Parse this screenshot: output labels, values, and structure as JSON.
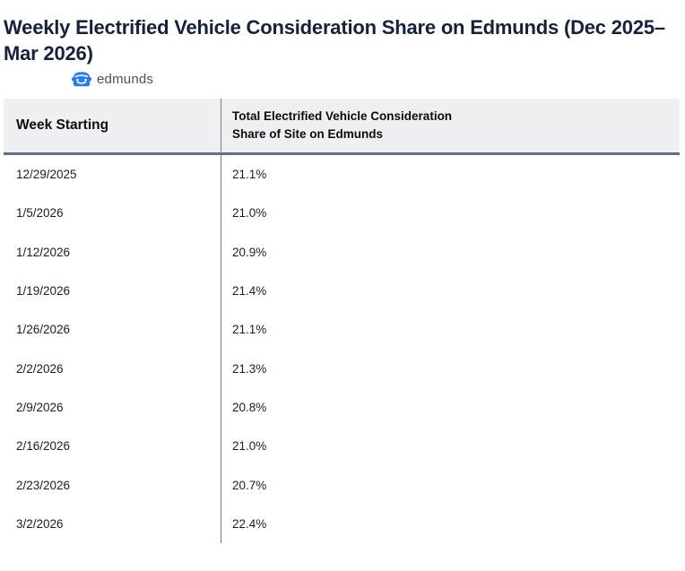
{
  "page": {
    "title": "Weekly Electrified Vehicle Consideration Share on Edmunds (Dec 2025–Mar 2026)"
  },
  "logo": {
    "brand_text": "edmunds",
    "icon": "edmunds-car-icon",
    "icon_color": "#2b7de9",
    "text_color": "#4d5256"
  },
  "table": {
    "header": {
      "col_week": "Week Starting",
      "col_share_line1": "Total Electrified Vehicle Consideration",
      "col_share_line2": "Share of Site on Edmunds"
    },
    "rows": [
      {
        "week": "12/29/2025",
        "share": "21.1%"
      },
      {
        "week": "1/5/2026",
        "share": "21.0%"
      },
      {
        "week": "1/12/2026",
        "share": "20.9%"
      },
      {
        "week": "1/19/2026",
        "share": "21.4%"
      },
      {
        "week": "1/26/2026",
        "share": "21.1%"
      },
      {
        "week": "2/2/2026",
        "share": "21.3%"
      },
      {
        "week": "2/9/2026",
        "share": "20.8%"
      },
      {
        "week": "2/16/2026",
        "share": "21.0%"
      },
      {
        "week": "2/23/2026",
        "share": "20.7%"
      },
      {
        "week": "3/2/2026",
        "share": "22.4%"
      }
    ]
  },
  "colors": {
    "title_text": "#15223b",
    "header_bg": "#eff0f2",
    "header_border": "#5f6e8b",
    "column_divider": "#6f7a90",
    "body_text": "#1d1d1f",
    "logo_blue": "#2b7de9"
  },
  "chart_data": {
    "type": "table",
    "title": "Weekly Electrified Vehicle Consideration Share on Edmunds (Dec 2025–Mar 2026)",
    "columns": [
      "Week Starting",
      "Total Electrified Vehicle Consideration Share of Site on Edmunds"
    ],
    "categories": [
      "12/29/2025",
      "1/5/2026",
      "1/12/2026",
      "1/19/2026",
      "1/26/2026",
      "2/2/2026",
      "2/9/2026",
      "2/16/2026",
      "2/23/2026",
      "3/2/2026"
    ],
    "values": [
      21.1,
      21.0,
      20.9,
      21.4,
      21.1,
      21.3,
      20.8,
      21.0,
      20.7,
      22.4
    ],
    "unit": "%"
  }
}
